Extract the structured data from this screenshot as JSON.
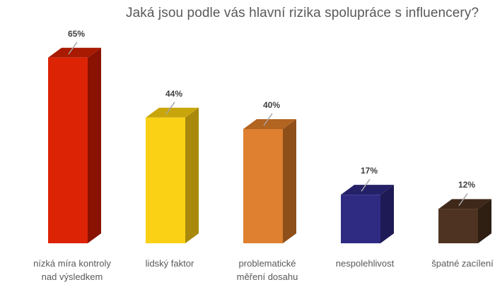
{
  "chart_data": {
    "type": "bar",
    "style": "3d-column",
    "title": "Jaká jsou podle vás hlavní rizika spolupráce s influencery?",
    "xlabel": "",
    "ylabel": "",
    "ylim": [
      0,
      65
    ],
    "grid": false,
    "legend": "none",
    "categories": [
      "nízká míra kontroly nad výsledkem",
      "lidský faktor",
      "problematické měření dosahu",
      "nespolehlivost",
      "špatné zacílení"
    ],
    "category_lines": [
      [
        "nízká míra kontroly",
        "nad výsledkem"
      ],
      [
        "lidský faktor"
      ],
      [
        "problematické",
        "měření dosahu"
      ],
      [
        "nespolehlivost"
      ],
      [
        "špatné zacílení"
      ]
    ],
    "values": [
      65,
      44,
      40,
      17,
      12
    ],
    "value_labels": [
      "65%",
      "44%",
      "40%",
      "17%",
      "12%"
    ],
    "unit": "%",
    "colors": [
      {
        "front": "#dd2306",
        "top": "#a91a02",
        "side": "#8a1203"
      },
      {
        "front": "#fbd116",
        "top": "#c9a50c",
        "side": "#a8890b"
      },
      {
        "front": "#de8030",
        "top": "#b26421",
        "side": "#8f4f19"
      },
      {
        "front": "#302b82",
        "top": "#252168",
        "side": "#1e1a55"
      },
      {
        "front": "#4f3322",
        "top": "#3e2819",
        "side": "#2f1e12"
      }
    ]
  }
}
